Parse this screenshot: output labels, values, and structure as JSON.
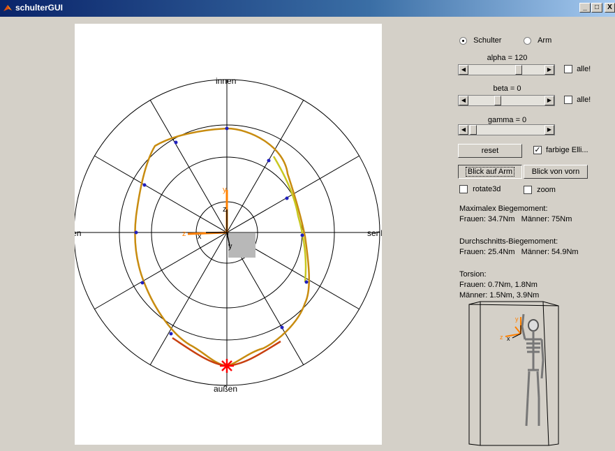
{
  "window": {
    "title": "schulterGUI",
    "icon": "matlab-icon",
    "controls": {
      "minimize": "_",
      "maximize": "□",
      "close": "X"
    }
  },
  "plot": {
    "labels": {
      "top": "innen",
      "left": "heben",
      "right": "senken",
      "bottom": "außen"
    },
    "axis_letters": {
      "y": "y",
      "z": "z",
      "x": "x"
    },
    "colors": {
      "curve_top": "#c88c10",
      "curve_right": "#c8c820",
      "curve_bottom": "#c82010",
      "marker": "#2020c0",
      "star": "#ff0000",
      "triad": "#ff8000"
    }
  },
  "controls": {
    "radio_schulter": {
      "label": "Schulter",
      "selected": true
    },
    "radio_arm": {
      "label": "Arm",
      "selected": false
    },
    "alpha": {
      "label": "alpha = 120",
      "value": 120,
      "alle_label": "alle!",
      "alle_checked": false
    },
    "beta": {
      "label": "beta = 0",
      "value": 0,
      "alle_label": "alle!",
      "alle_checked": false
    },
    "gamma": {
      "label": "gamma = 0",
      "value": 0
    },
    "reset_label": "reset",
    "farbige_label": "farbige Elli...",
    "farbige_checked": true,
    "blick_arm_label": "Blick auf Arm",
    "blick_vorn_label": "Blick von vorn",
    "rotate3d_label": "rotate3d",
    "rotate3d_checked": false,
    "zoom_label": "zoom",
    "zoom_checked": false
  },
  "info": {
    "max_title": "Maximalex Biegemoment:",
    "max_values": "Frauen: 34.7Nm   Männer: 75Nm",
    "avg_title": "Durchschnitts-Biegemoment:",
    "avg_values": "Frauen: 25.4Nm   Männer: 54.9Nm",
    "torsion_title": "Torsion:",
    "torsion_frauen": "Frauen: 0.7Nm, 1.8Nm",
    "torsion_maenner": "Männer: 1.5Nm, 3.9Nm"
  },
  "skeleton_view": {
    "icon": "skeleton-icon"
  }
}
